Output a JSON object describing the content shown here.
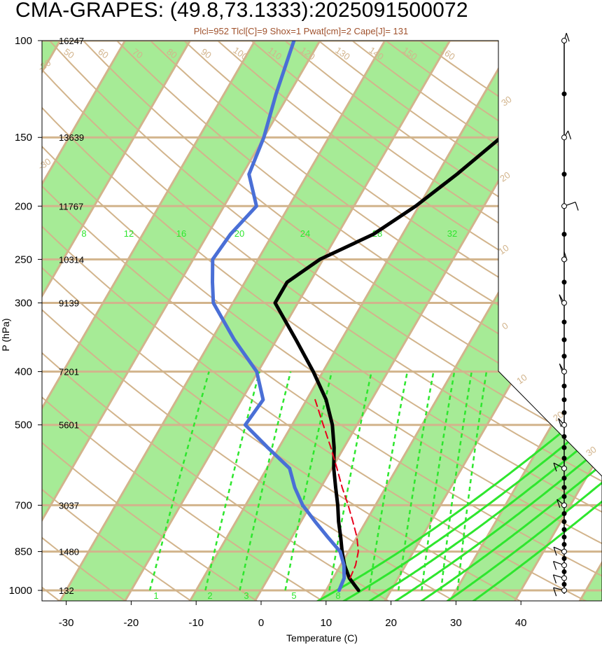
{
  "chart_data": {
    "type": "line",
    "title": "CMA-GRAPES: (49.8,73.1333):2025091500072",
    "subtitle": "Plcl=952 Tlcl[C]=9 Shox=1 Pwat[cm]=2 Cape[J]= 131",
    "xlabel": "Temperature (C)",
    "ylabel": "P (hPa)",
    "xlim": [
      -35,
      50
    ],
    "ylim": [
      1000,
      100
    ],
    "yscale": "log",
    "x_ticks": [
      "-30",
      "-20",
      "-10",
      "0",
      "10",
      "20",
      "30",
      "40"
    ],
    "pressure_levels": [
      {
        "p": 100,
        "label": "100",
        "height": "16247"
      },
      {
        "p": 150,
        "label": "150",
        "height": "13639"
      },
      {
        "p": 200,
        "label": "200",
        "height": "11767"
      },
      {
        "p": 250,
        "label": "250",
        "height": "10314"
      },
      {
        "p": 300,
        "label": "300",
        "height": "9139"
      },
      {
        "p": 400,
        "label": "400",
        "height": "7201"
      },
      {
        "p": 500,
        "label": "500",
        "height": "5601"
      },
      {
        "p": 700,
        "label": "700",
        "height": "3037"
      },
      {
        "p": 850,
        "label": "850",
        "height": "1480"
      },
      {
        "p": 1000,
        "label": "1000",
        "height": "132"
      }
    ],
    "series": [
      {
        "type": "temperature",
        "color": "#000000",
        "points": [
          [
            1000,
            15
          ],
          [
            950,
            12.5
          ],
          [
            900,
            10.6
          ],
          [
            850,
            9
          ],
          [
            800,
            7.5
          ],
          [
            750,
            5.8
          ],
          [
            700,
            4.2
          ],
          [
            650,
            2.3
          ],
          [
            600,
            0.3
          ],
          [
            550,
            -1.5
          ],
          [
            500,
            -3.8
          ],
          [
            450,
            -7
          ],
          [
            400,
            -11.5
          ],
          [
            350,
            -17
          ],
          [
            300,
            -23.5
          ],
          [
            275,
            -23.5
          ],
          [
            250,
            -20.5
          ],
          [
            225,
            -14.5
          ],
          [
            200,
            -10.5
          ],
          [
            175,
            -7
          ],
          [
            150,
            -3.5
          ],
          [
            125,
            1
          ],
          [
            100,
            5.5
          ]
        ]
      },
      {
        "type": "dewpoint",
        "color": "#4a6fd6",
        "points": [
          [
            1000,
            12
          ],
          [
            950,
            11.7
          ],
          [
            900,
            10.5
          ],
          [
            850,
            8.7
          ],
          [
            800,
            5.5
          ],
          [
            750,
            2.2
          ],
          [
            700,
            -1.2
          ],
          [
            650,
            -4
          ],
          [
            600,
            -6.5
          ],
          [
            550,
            -11.7
          ],
          [
            500,
            -17.2
          ],
          [
            450,
            -16.7
          ],
          [
            400,
            -20.2
          ],
          [
            350,
            -26.5
          ],
          [
            300,
            -33
          ],
          [
            275,
            -35
          ],
          [
            250,
            -37
          ],
          [
            225,
            -36.5
          ],
          [
            200,
            -35
          ],
          [
            175,
            -39
          ],
          [
            150,
            -40
          ],
          [
            125,
            -42
          ],
          [
            100,
            -44
          ]
        ]
      },
      {
        "type": "parcel",
        "color": "#e8001c",
        "points": [
          [
            950,
            12.6
          ],
          [
            900,
            12.3
          ],
          [
            850,
            11.5
          ],
          [
            800,
            10
          ],
          [
            750,
            8
          ],
          [
            700,
            5.8
          ],
          [
            650,
            3.3
          ],
          [
            600,
            0.8
          ],
          [
            550,
            -2
          ],
          [
            500,
            -5.2
          ],
          [
            450,
            -8.7
          ]
        ]
      }
    ],
    "mixing_ratio_labels": [
      "1",
      "2",
      "3",
      "5",
      "8"
    ],
    "moist_adiabat_labels": [
      "8",
      "12",
      "16",
      "20",
      "24",
      "28",
      "32"
    ],
    "dry_adiabat_labels": [
      "50",
      "60",
      "70",
      "80",
      "90",
      "100",
      "110",
      "120",
      "130",
      "140",
      "150",
      "160"
    ],
    "isotherm_labels": [
      "-30",
      "-20",
      "-10",
      "0",
      "10",
      "20",
      "30",
      "40"
    ]
  },
  "colors": {
    "band": "#a6eb96",
    "isotherm": "#d2b48c",
    "moist": "#2ee62e",
    "label_tan": "#d2b48c",
    "title": "#000000",
    "subtitle": "#a0522d"
  }
}
